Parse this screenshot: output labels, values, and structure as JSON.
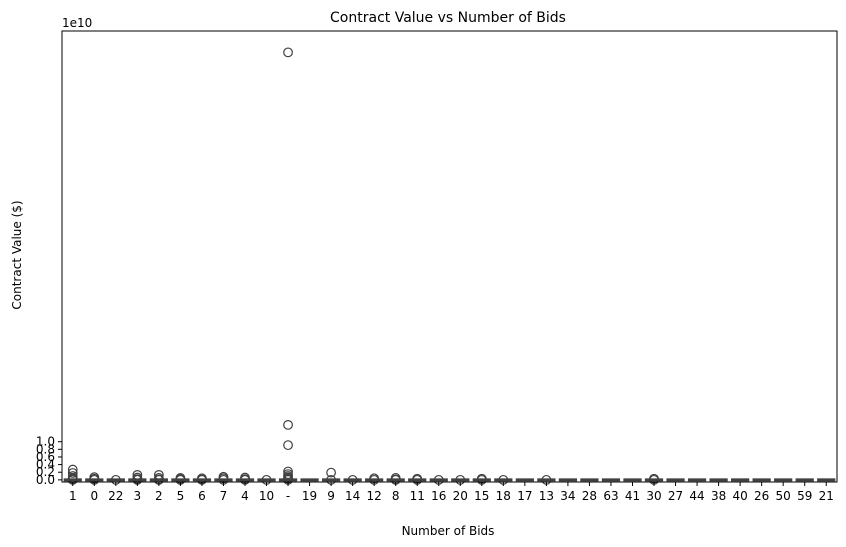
{
  "chart_data": {
    "type": "box",
    "title": "Contract Value vs Number of Bids",
    "xlabel": "Number of Bids",
    "ylabel": "Contract Value ($)",
    "y_offset_text": "1e10",
    "y_scale_factor": 10000000000,
    "ylim": [
      -0.056,
      11.76
    ],
    "yticks": [
      0.0,
      0.2,
      0.4,
      0.6,
      0.8,
      1.0
    ],
    "ytick_labels": [
      "0.0",
      "0.2",
      "0.4",
      "0.6",
      "0.8",
      "1.0"
    ],
    "grid": false,
    "legend": "none",
    "box_color": "#1f77b4",
    "marker_edge_color": "#404040",
    "categories": [
      "1",
      "0",
      "22",
      "3",
      "2",
      "5",
      "6",
      "7",
      "4",
      "10",
      "-",
      "19",
      "9",
      "14",
      "12",
      "8",
      "11",
      "16",
      "20",
      "15",
      "18",
      "17",
      "13",
      "34",
      "28",
      "63",
      "41",
      "30",
      "27",
      "44",
      "38",
      "40",
      "26",
      "50",
      "59",
      "21"
    ],
    "outliers": [
      {
        "category": "1",
        "values": [
          0.27,
          0.18,
          0.1,
          0.05,
          0.02,
          0.0
        ]
      },
      {
        "category": "0",
        "values": [
          0.07,
          0.03,
          0.0
        ]
      },
      {
        "category": "22",
        "values": [
          0.0
        ]
      },
      {
        "category": "3",
        "values": [
          0.13,
          0.06,
          0.02,
          0.0
        ]
      },
      {
        "category": "2",
        "values": [
          0.13,
          0.05,
          0.01,
          0.0
        ]
      },
      {
        "category": "5",
        "values": [
          0.05,
          0.02,
          0.0
        ]
      },
      {
        "category": "6",
        "values": [
          0.04,
          0.01,
          0.0
        ]
      },
      {
        "category": "7",
        "values": [
          0.08,
          0.04,
          0.0
        ]
      },
      {
        "category": "4",
        "values": [
          0.06,
          0.02,
          0.0
        ]
      },
      {
        "category": "10",
        "values": [
          0.0
        ]
      },
      {
        "category": "-",
        "values": [
          11.2,
          1.44,
          0.91,
          0.22,
          0.15,
          0.1,
          0.06,
          0.03,
          0.0
        ]
      },
      {
        "category": "9",
        "values": [
          0.19,
          0.0
        ]
      },
      {
        "category": "14",
        "values": [
          0.0
        ]
      },
      {
        "category": "12",
        "values": [
          0.04,
          0.0
        ]
      },
      {
        "category": "8",
        "values": [
          0.05,
          0.01,
          0.0
        ]
      },
      {
        "category": "11",
        "values": [
          0.03,
          0.0
        ]
      },
      {
        "category": "16",
        "values": [
          0.0
        ]
      },
      {
        "category": "20",
        "values": [
          0.0
        ]
      },
      {
        "category": "15",
        "values": [
          0.03,
          0.0
        ]
      },
      {
        "category": "18",
        "values": [
          0.0
        ]
      },
      {
        "category": "13",
        "values": [
          0.0
        ]
      },
      {
        "category": "30",
        "values": [
          0.03,
          0.0
        ]
      }
    ]
  }
}
